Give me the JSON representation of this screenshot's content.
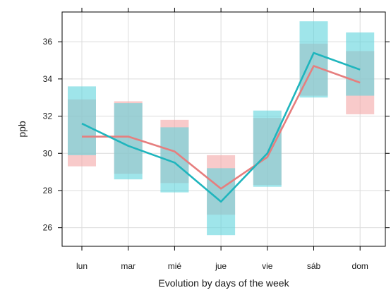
{
  "chart_data": {
    "type": "line",
    "title": "",
    "xlabel": "Evolution by days of the week",
    "ylabel": "ppb",
    "categories": [
      "lun",
      "mar",
      "mié",
      "jue",
      "vie",
      "sáb",
      "dom"
    ],
    "yticks": [
      26,
      28,
      30,
      32,
      34,
      36
    ],
    "ylim": [
      25.0,
      37.6
    ],
    "grid": true,
    "legend": "none",
    "series": [
      {
        "color": "#e67e7e",
        "band_color": "#f4a6a6",
        "values": [
          30.9,
          30.9,
          30.1,
          28.1,
          29.8,
          34.7,
          33.8
        ],
        "lower": [
          29.3,
          28.9,
          28.4,
          26.7,
          28.3,
          33.1,
          32.1
        ],
        "upper": [
          32.9,
          32.8,
          31.8,
          29.9,
          31.9,
          35.9,
          35.5
        ]
      },
      {
        "color": "#1fb5bd",
        "band_color": "#5fd3dc",
        "values": [
          31.6,
          30.4,
          29.5,
          27.4,
          30.0,
          35.4,
          34.5
        ],
        "lower": [
          29.9,
          28.6,
          27.9,
          25.6,
          28.2,
          33.0,
          33.1
        ],
        "upper": [
          33.6,
          32.7,
          31.4,
          29.2,
          32.3,
          37.1,
          36.5
        ]
      }
    ]
  }
}
